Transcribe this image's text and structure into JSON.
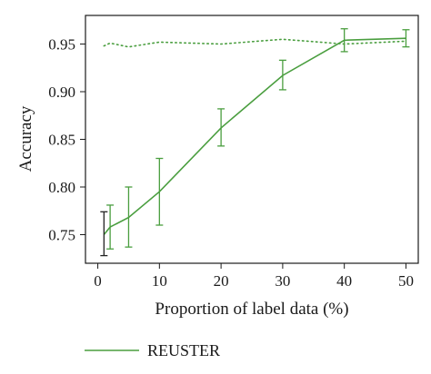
{
  "chart_data": {
    "type": "line",
    "xlabel": "Proportion of label data (%)",
    "ylabel": "Accuracy",
    "xlim": [
      -2,
      52
    ],
    "ylim": [
      0.72,
      0.98
    ],
    "x_ticks": [
      0,
      10,
      20,
      30,
      40,
      50
    ],
    "y_ticks": [
      0.75,
      0.8,
      0.85,
      0.9,
      0.95
    ],
    "y_tick_labels": [
      "0.75",
      "0.80",
      "0.85",
      "0.90",
      "0.95"
    ],
    "grid": false,
    "legend_position": "bottom-left",
    "series": [
      {
        "name": "REUSTER",
        "style": "solid",
        "color": "#4a9e3f",
        "x": [
          1,
          2,
          5,
          10,
          20,
          30,
          40,
          50
        ],
        "y": [
          0.75,
          0.758,
          0.768,
          0.795,
          0.862,
          0.917,
          0.954,
          0.956
        ],
        "err_low": [
          0.728,
          0.735,
          0.737,
          0.76,
          0.843,
          0.902,
          0.942,
          0.947
        ],
        "err_high": [
          0.774,
          0.781,
          0.8,
          0.83,
          0.882,
          0.933,
          0.966,
          0.965
        ]
      },
      {
        "style": "dotted",
        "color": "#4a9e3f",
        "x": [
          1,
          2,
          5,
          10,
          20,
          30,
          40,
          50
        ],
        "y": [
          0.948,
          0.951,
          0.947,
          0.952,
          0.95,
          0.955,
          0.95,
          0.953
        ]
      }
    ]
  }
}
